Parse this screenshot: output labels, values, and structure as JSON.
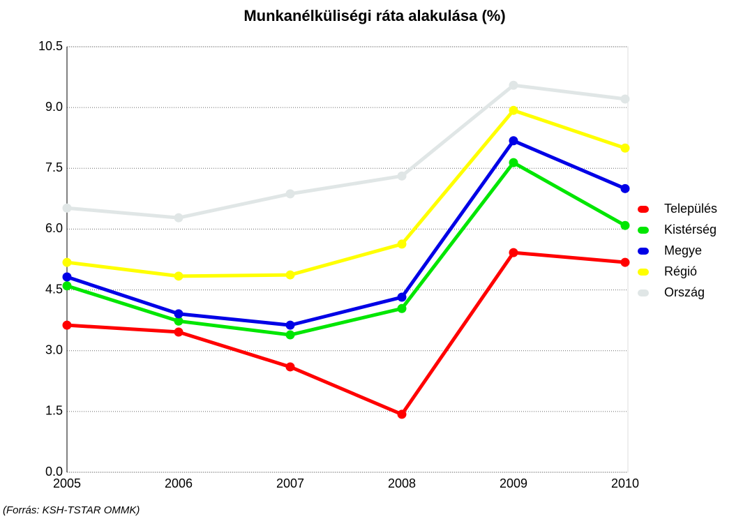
{
  "chart_data": {
    "type": "line",
    "title": "Munkanélküliségi ráta alakulása (%)",
    "source": "(Forrás: KSH-TSTAR OMMK)",
    "categories": [
      "2005",
      "2006",
      "2007",
      "2008",
      "2009",
      "2010"
    ],
    "series": [
      {
        "name": "Település",
        "color": "#ff0000",
        "values": [
          3.63,
          3.46,
          2.6,
          1.43,
          5.42,
          5.18
        ]
      },
      {
        "name": "Kistérség",
        "color": "#00e600",
        "values": [
          4.6,
          3.73,
          3.39,
          4.04,
          7.64,
          6.09
        ]
      },
      {
        "name": "Megye",
        "color": "#0000e6",
        "values": [
          4.82,
          3.91,
          3.63,
          4.32,
          8.18,
          7.0
        ]
      },
      {
        "name": "Régió",
        "color": "#ffff00",
        "values": [
          5.18,
          4.84,
          4.87,
          5.63,
          8.93,
          8.0
        ]
      },
      {
        "name": "Ország",
        "color": "#e0e6e6",
        "values": [
          6.52,
          6.28,
          6.87,
          7.31,
          9.55,
          9.21
        ]
      }
    ],
    "ylim": [
      0,
      10.5
    ],
    "yticks": [
      {
        "value": 0,
        "label": "0.0"
      },
      {
        "value": 1.5,
        "label": "1.5"
      },
      {
        "value": 3,
        "label": "3.0"
      },
      {
        "value": 4.5,
        "label": "4.5"
      },
      {
        "value": 6,
        "label": "6.0"
      },
      {
        "value": 7.5,
        "label": "7.5"
      },
      {
        "value": 9,
        "label": "9.0"
      },
      {
        "value": 10.5,
        "label": "10.5"
      }
    ],
    "grid": true,
    "legend": "right"
  }
}
